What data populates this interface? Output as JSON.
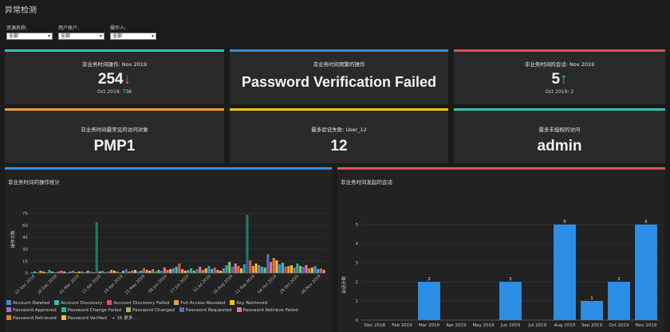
{
  "page": {
    "title": "异常检测"
  },
  "filters": [
    {
      "label": "资源名称:",
      "value": "全部"
    },
    {
      "label": "用户账户:",
      "value": "全部"
    },
    {
      "label": "操作人:",
      "value": "全部"
    }
  ],
  "cards": {
    "c1": {
      "title": "非业务时间操作: Nov 2019",
      "value": "254",
      "arrow": "↓",
      "sub": "Oct 2019: 738"
    },
    "c2": {
      "title": "非业务时间频繁的操作",
      "value": "Password Verification Failed"
    },
    "c3": {
      "title": "非业务时间的会话: Nov 2019",
      "value": "5",
      "arrow": "↑",
      "sub": "Oct 2019: 2"
    },
    "c4": {
      "title": "非业务时间最常见的访问对象",
      "value": "PMP1"
    },
    "c5": {
      "title": "最多验证失败: User_12",
      "value": "12"
    },
    "c6": {
      "title": "最多未授权的访问",
      "value": "admin"
    }
  },
  "colors": {
    "teal": "#2ec4b6",
    "blue": "#3b8de0",
    "red": "#e2505d",
    "orange": "#f39c3d",
    "yellow": "#f1c40f",
    "bar": "#2d8ee6"
  },
  "chart_data": [
    {
      "type": "bar",
      "title": "非业务时间的操作统计",
      "ylabel": "操作次数",
      "ylim": [
        0,
        85
      ],
      "yticks": [
        0,
        15,
        30,
        45,
        60,
        75
      ],
      "categories": [
        "07 Dec 2018",
        "20 Dec 2018",
        "01 Mar 2019",
        "11 Apr 2019",
        "19 Apr 2019",
        "25 May 2019",
        "08 Jun 2019",
        "27 Jun 2019",
        "11 Jul 2019",
        "16 Aug 2019",
        "11 Sep 2019",
        "04 Oct 2019",
        "29 Oct 2019",
        "06 Nov 2019"
      ],
      "series_values": [
        [
          1,
          2,
          1,
          3,
          2,
          1,
          4,
          2,
          1,
          2,
          3,
          2,
          1,
          2,
          3,
          1,
          2,
          2,
          1,
          3,
          2,
          1,
          64,
          2,
          3,
          1,
          2,
          4,
          3,
          2,
          1,
          3,
          5,
          2,
          3,
          4,
          2,
          3,
          6,
          4,
          3,
          5,
          2,
          4,
          3,
          7,
          4,
          5,
          6,
          8,
          12,
          5,
          3,
          4,
          6,
          3,
          5,
          8,
          4,
          6,
          9,
          5,
          7,
          4,
          3,
          6,
          10,
          14,
          8,
          12,
          9,
          6,
          11,
          73,
          16,
          9,
          12,
          10,
          8,
          7,
          24,
          14,
          19,
          16,
          11,
          13,
          8,
          9,
          10,
          7,
          12,
          9,
          8,
          10,
          6,
          7,
          9,
          5,
          6,
          4
        ]
      ],
      "legend": [
        {
          "label": "Account Deleted",
          "color": "#3b8de0"
        },
        {
          "label": "Account Discovery",
          "color": "#2ec4b6"
        },
        {
          "label": "Account Discovery Failed",
          "color": "#e2505d"
        },
        {
          "label": "Full Access Revoked",
          "color": "#f39c3d"
        },
        {
          "label": "Key Retrieved",
          "color": "#f1c40f"
        },
        {
          "label": "Password Approved",
          "color": "#9b6fd8"
        },
        {
          "label": "Password Change Failed",
          "color": "#1abc9c"
        },
        {
          "label": "Password Changed",
          "color": "#8bc34a"
        },
        {
          "label": "Password Requested",
          "color": "#5c6bc0"
        },
        {
          "label": "Password Retrieve Failed",
          "color": "#ec6f9e"
        },
        {
          "label": "Password Retrieved",
          "color": "#e67e22"
        },
        {
          "label": "Password Verified",
          "color": "#f4b942"
        }
      ],
      "more": "+ 16 更多..."
    },
    {
      "type": "bar",
      "title": "非业务时间发起的会话",
      "ylabel": "会话计数",
      "ylim": [
        0,
        6
      ],
      "yticks": [
        0,
        1,
        2,
        3,
        4,
        5
      ],
      "categories": [
        "Dec 2018",
        "Feb 2019",
        "Mar 2019",
        "Apr 2019",
        "May 2019",
        "Jun 2019",
        "Jul 2019",
        "Aug 2019",
        "Sep 2019",
        "Oct 2019",
        "Nov 2019"
      ],
      "values": [
        0,
        0,
        2,
        0,
        0,
        2,
        0,
        5,
        1,
        2,
        5
      ]
    }
  ]
}
